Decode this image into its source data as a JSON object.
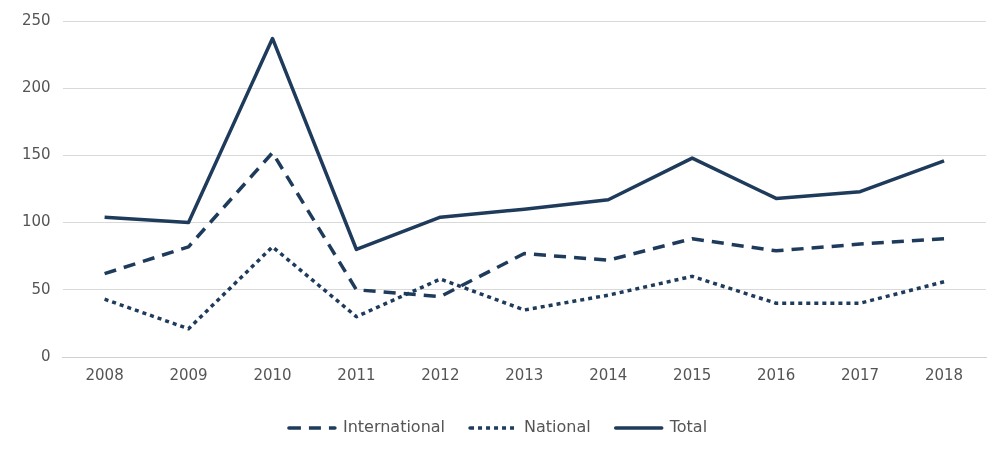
{
  "chart_data": {
    "type": "line",
    "categories": [
      "2008",
      "2009",
      "2010",
      "2011",
      "2012",
      "2013",
      "2014",
      "2015",
      "2016",
      "2017",
      "2018"
    ],
    "series": [
      {
        "name": "International",
        "color": "#1f3b5c",
        "line_style": "dashed",
        "values": [
          62,
          82,
          152,
          50,
          45,
          77,
          72,
          88,
          79,
          84,
          88
        ]
      },
      {
        "name": "National",
        "color": "#1f3b5c",
        "line_style": "dotted",
        "values": [
          43,
          21,
          82,
          30,
          58,
          35,
          46,
          60,
          40,
          40,
          56
        ]
      },
      {
        "name": "Total",
        "color": "#1f3b5c",
        "line_style": "solid",
        "values": [
          104,
          100,
          237,
          80,
          104,
          110,
          117,
          148,
          118,
          123,
          146
        ]
      }
    ],
    "ylim": [
      0,
      250
    ],
    "yticks": [
      0,
      50,
      100,
      150,
      200,
      250
    ],
    "grid": "y",
    "legend": "bottom",
    "marker": "none"
  }
}
